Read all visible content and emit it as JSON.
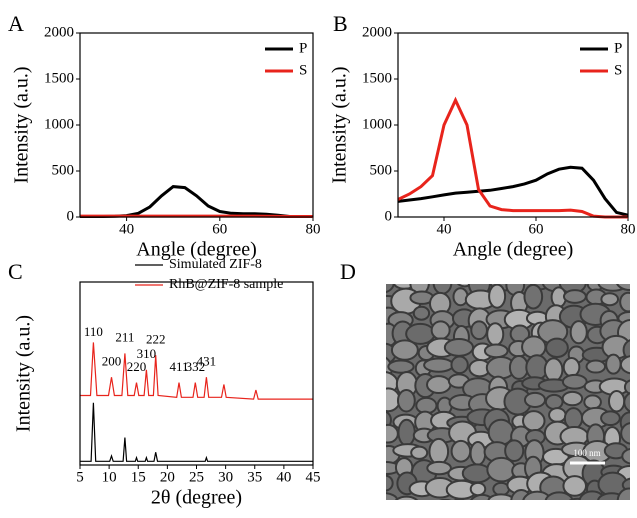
{
  "chart_data": [
    {
      "type": "line",
      "panel": "A",
      "xlabel": "Angle (degree)",
      "ylabel": "Intensity (a.u.)",
      "xlim": [
        30,
        80
      ],
      "xticks": [
        40,
        60,
        80
      ],
      "ylim": [
        0,
        2000
      ],
      "yticks": [
        0,
        500,
        1000,
        1500,
        2000
      ],
      "legend": "upper right",
      "x": [
        30,
        32.5,
        35,
        37.5,
        40,
        42.5,
        45,
        47.5,
        50,
        52.5,
        55,
        57.5,
        60,
        62.5,
        65,
        67.5,
        70,
        72.5,
        75,
        77.5,
        80
      ],
      "series": [
        {
          "name": "P",
          "color": "#000000",
          "values": [
            5,
            5,
            5,
            8,
            15,
            40,
            110,
            230,
            330,
            320,
            230,
            120,
            60,
            40,
            35,
            35,
            30,
            20,
            5,
            5,
            5
          ]
        },
        {
          "name": "S",
          "color": "#e8241c",
          "values": [
            10,
            10,
            10,
            10,
            10,
            10,
            10,
            10,
            10,
            10,
            10,
            10,
            10,
            10,
            10,
            10,
            8,
            6,
            5,
            5,
            5
          ]
        }
      ]
    },
    {
      "type": "line",
      "panel": "B",
      "xlabel": "Angle (degree)",
      "ylabel": "Intensity (a.u.)",
      "xlim": [
        30,
        80
      ],
      "xticks": [
        40,
        60,
        80
      ],
      "ylim": [
        0,
        2000
      ],
      "yticks": [
        0,
        500,
        1000,
        1500,
        2000
      ],
      "legend": "upper right",
      "x": [
        30,
        32.5,
        35,
        37.5,
        40,
        42.5,
        45,
        47.5,
        50,
        52.5,
        55,
        57.5,
        60,
        62.5,
        65,
        67.5,
        70,
        72.5,
        75,
        77.5,
        80
      ],
      "series": [
        {
          "name": "P",
          "color": "#000000",
          "values": [
            170,
            185,
            200,
            220,
            240,
            260,
            270,
            280,
            290,
            310,
            330,
            360,
            400,
            470,
            520,
            540,
            530,
            400,
            200,
            50,
            20
          ]
        },
        {
          "name": "S",
          "color": "#e8241c",
          "values": [
            190,
            250,
            330,
            450,
            1000,
            1270,
            1000,
            300,
            120,
            80,
            70,
            70,
            70,
            70,
            70,
            75,
            60,
            10,
            0,
            0,
            0
          ]
        }
      ]
    },
    {
      "type": "line",
      "panel": "C",
      "xlabel": "2θ (degree)",
      "ylabel": "Intensity (a.u.)",
      "xlim": [
        5,
        45
      ],
      "xticks": [
        5,
        10,
        15,
        20,
        25,
        30,
        35,
        40,
        45
      ],
      "ylim": [
        0,
        100
      ],
      "legend": "upper left",
      "series": [
        {
          "name": "Simulated ZIF-8",
          "color": "#000000",
          "x": [
            5,
            6.9,
            7.3,
            7.7,
            10.1,
            10.4,
            10.7,
            12.4,
            12.7,
            13.0,
            14.5,
            14.7,
            14.9,
            16.2,
            16.4,
            16.6,
            17.7,
            18.0,
            18.3,
            26.5,
            26.7,
            26.9,
            45
          ],
          "values": [
            2,
            2,
            34,
            2,
            2,
            5,
            2,
            2,
            15,
            2,
            2,
            4,
            2,
            2,
            4,
            2,
            2,
            7,
            2,
            2,
            4,
            2,
            2
          ]
        },
        {
          "name": "RhB@ZIF-8 sample",
          "color": "#e8241c",
          "x": [
            5,
            6.8,
            7.3,
            7.9,
            9.9,
            10.4,
            10.9,
            12.2,
            12.7,
            13.2,
            14.3,
            14.7,
            15.1,
            16.0,
            16.4,
            16.8,
            17.6,
            18.0,
            18.4,
            21.6,
            22.0,
            22.4,
            24.4,
            24.8,
            25.2,
            26.3,
            26.7,
            27.1,
            29.3,
            29.7,
            30.1,
            34.8,
            35.2,
            35.6,
            45
          ],
          "values": [
            38,
            38,
            67,
            38,
            38,
            48,
            38,
            38,
            61,
            38,
            38,
            45,
            38,
            38,
            52,
            38,
            38,
            60,
            38,
            37,
            45,
            37,
            37,
            45,
            37,
            37,
            48,
            37,
            37,
            44,
            37,
            36,
            41,
            36,
            36
          ]
        }
      ],
      "annotations": [
        {
          "text": "110",
          "x": 7.3,
          "y": 72
        },
        {
          "text": "200",
          "x": 10.4,
          "y": 56
        },
        {
          "text": "211",
          "x": 12.7,
          "y": 69
        },
        {
          "text": "220",
          "x": 14.7,
          "y": 53
        },
        {
          "text": "310",
          "x": 16.4,
          "y": 60
        },
        {
          "text": "222",
          "x": 18.0,
          "y": 68
        },
        {
          "text": "411",
          "x": 22.0,
          "y": 53
        },
        {
          "text": "332",
          "x": 24.8,
          "y": 53
        },
        {
          "text": "431",
          "x": 26.7,
          "y": 56
        }
      ]
    },
    {
      "type": "image",
      "panel": "D",
      "scale_bar": "100 nm"
    }
  ]
}
